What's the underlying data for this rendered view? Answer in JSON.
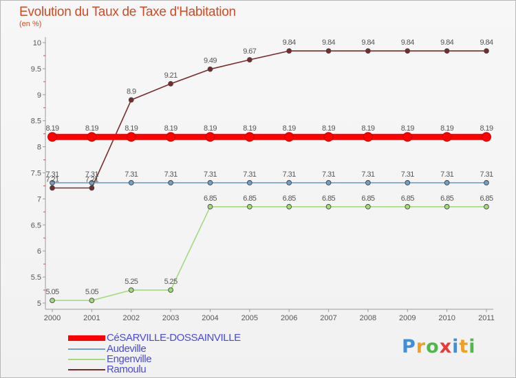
{
  "title": "Evolution du Taux de Taxe d'Habitation",
  "subtitle": "(en %)",
  "chart_data": {
    "type": "line",
    "title": "Evolution du Taux de Taxe d'Habitation",
    "ylabel": "(en %)",
    "xlabel": "",
    "x": [
      "2000",
      "2001",
      "2002",
      "2003",
      "2004",
      "2005",
      "2006",
      "2007",
      "2008",
      "2009",
      "2010",
      "2011"
    ],
    "ylim": [
      5,
      10
    ],
    "yticks": [
      "5",
      "5.5",
      "6",
      "6.5",
      "7",
      "7.5",
      "8",
      "8.5",
      "9",
      "9.5",
      "10"
    ],
    "ytick_values": [
      5,
      5.5,
      6,
      6.5,
      7,
      7.5,
      8,
      8.5,
      9,
      9.5,
      10
    ],
    "grid": false,
    "legend_position": "bottom-left",
    "series": [
      {
        "name": "CéSARVILLE-DOSSAINVILLE",
        "color": "#ff0000",
        "emphasis": true,
        "values": [
          8.19,
          8.19,
          8.19,
          8.19,
          8.19,
          8.19,
          8.19,
          8.19,
          8.19,
          8.19,
          8.19,
          8.19
        ],
        "labels": [
          "8.19",
          "8.19",
          "8.19",
          "8.19",
          "8.19",
          "8.19",
          "8.19",
          "8.19",
          "8.19",
          "8.19",
          "8.19",
          "8.19"
        ]
      },
      {
        "name": "Audeville",
        "color": "#6fa0c8",
        "values": [
          7.31,
          7.31,
          7.31,
          7.31,
          7.31,
          7.31,
          7.31,
          7.31,
          7.31,
          7.31,
          7.31,
          7.31
        ],
        "labels": [
          "7.31",
          "7.31",
          "7.31",
          "7.31",
          "7.31",
          "7.31",
          "7.31",
          "7.31",
          "7.31",
          "7.31",
          "7.31",
          "7.31"
        ]
      },
      {
        "name": "Engenville",
        "color": "#a0dc78",
        "values": [
          5.05,
          5.05,
          5.25,
          5.25,
          6.85,
          6.85,
          6.85,
          6.85,
          6.85,
          6.85,
          6.85,
          6.85
        ],
        "labels": [
          "5.05",
          "5.05",
          "5.25",
          "5.25",
          "6.85",
          "6.85",
          "6.85",
          "6.85",
          "6.85",
          "6.85",
          "6.85",
          "6.85"
        ]
      },
      {
        "name": "Ramoulu",
        "color": "#7a2a2a",
        "values": [
          7.21,
          7.21,
          8.9,
          9.21,
          9.49,
          9.67,
          9.84,
          9.84,
          9.84,
          9.84,
          9.84,
          9.84
        ],
        "labels": [
          "7.21",
          "7.21",
          "8.9",
          "9.21",
          "9.49",
          "9.67",
          "9.84",
          "9.84",
          "9.84",
          "9.84",
          "9.84",
          "9.84"
        ]
      }
    ]
  },
  "legend": {
    "items": [
      {
        "label": "CéSARVILLE-DOSSAINVILLE",
        "color": "#ff0000"
      },
      {
        "label": "Audeville",
        "color": "#6fa0c8"
      },
      {
        "label": "Engenville",
        "color": "#a0dc78"
      },
      {
        "label": "Ramoulu",
        "color": "#7a2a2a"
      }
    ]
  },
  "logo": {
    "text": "Proxiti",
    "letters": [
      {
        "ch": "P",
        "color": "#3f8fd6"
      },
      {
        "ch": "r",
        "color": "#f0a020"
      },
      {
        "ch": "o",
        "color": "#4fb848"
      },
      {
        "ch": "x",
        "color": "#e83a3a"
      },
      {
        "ch": "i",
        "color": "#3f8fd6"
      },
      {
        "ch": "t",
        "color": "#f0a020"
      },
      {
        "ch": "i",
        "color": "#4fb848"
      }
    ]
  }
}
